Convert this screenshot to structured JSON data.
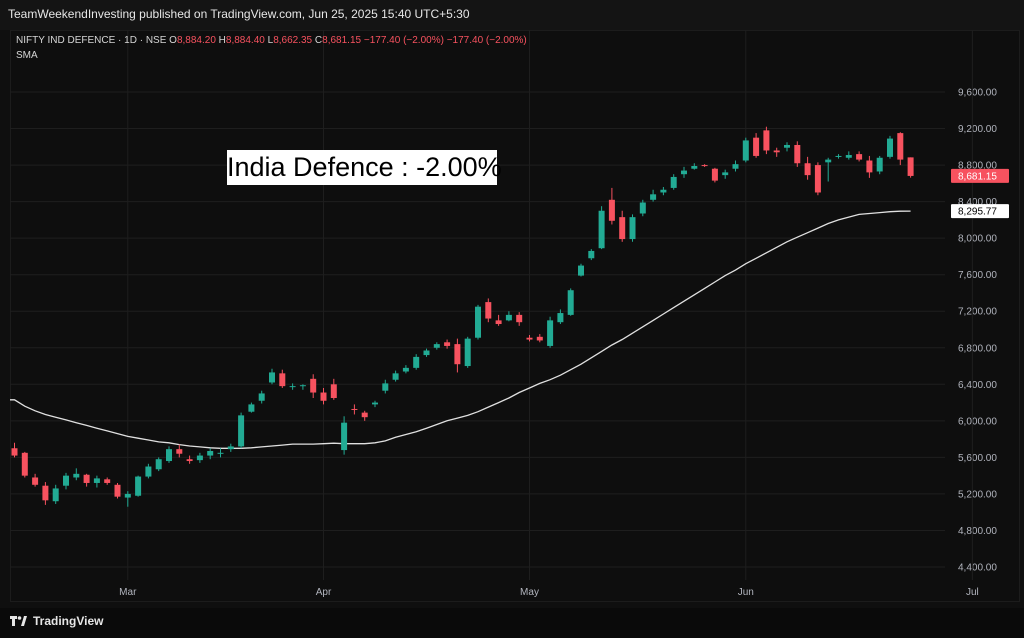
{
  "header": {
    "published_line": "TeamWeekendInvesting published on TradingView.com, Jun 25, 2025 15:40 UTC+5:30"
  },
  "legend": {
    "symbol": "NIFTY IND DEFENCE · 1D · NSE",
    "o_key": "O",
    "o_val": "8,884.20",
    "h_key": "H",
    "h_val": "8,884.40",
    "l_key": "L",
    "l_val": "8,662.35",
    "c_key": "C",
    "c_val": "8,681.15",
    "change": "−177.40 (−2.00%)",
    "change2": "−177.40 (−2.00%)",
    "indicator": "SMA"
  },
  "annotation": "India Defence : -2.00%",
  "footer": {
    "brand": "TradingView"
  },
  "colors": {
    "up": "#22ab94",
    "down": "#f7525f",
    "sma": "#e0e0e0",
    "grid": "#1e1e1e",
    "last_price_tag": "#f7525f",
    "sma_tag": "#ffffff"
  },
  "chart_data": {
    "type": "candlestick",
    "y_axis": {
      "ticks": [
        "9,600.00",
        "9,200.00",
        "8,800.00",
        "8,400.00",
        "8,000.00",
        "7,600.00",
        "7,200.00",
        "6,800.00",
        "6,400.00",
        "6,000.00",
        "5,600.00",
        "5,200.00",
        "4,800.00",
        "4,400.00"
      ],
      "range": [
        4300,
        9800
      ]
    },
    "x_axis": {
      "labels": [
        {
          "label": "Mar",
          "bar": 11
        },
        {
          "label": "Apr",
          "bar": 30
        },
        {
          "label": "May",
          "bar": 50
        },
        {
          "label": "Jun",
          "bar": 71
        },
        {
          "label": "Jul",
          "bar": 93
        }
      ]
    },
    "last_price_label": "8,681.15",
    "last_price": 8681.15,
    "sma_label": "8,295.77",
    "sma_last": 8295.77,
    "ohlc": [
      [
        5700,
        5760,
        5600,
        5620
      ],
      [
        5650,
        5660,
        5380,
        5400
      ],
      [
        5380,
        5420,
        5280,
        5300
      ],
      [
        5290,
        5330,
        5080,
        5130
      ],
      [
        5120,
        5300,
        5090,
        5260
      ],
      [
        5290,
        5430,
        5250,
        5400
      ],
      [
        5380,
        5480,
        5350,
        5420
      ],
      [
        5410,
        5420,
        5280,
        5320
      ],
      [
        5320,
        5400,
        5270,
        5370
      ],
      [
        5360,
        5380,
        5300,
        5320
      ],
      [
        5300,
        5320,
        5150,
        5170
      ],
      [
        5160,
        5230,
        5060,
        5200
      ],
      [
        5180,
        5400,
        5170,
        5390
      ],
      [
        5390,
        5530,
        5370,
        5500
      ],
      [
        5470,
        5600,
        5450,
        5580
      ],
      [
        5560,
        5720,
        5540,
        5690
      ],
      [
        5690,
        5740,
        5600,
        5640
      ],
      [
        5580,
        5620,
        5530,
        5560
      ],
      [
        5570,
        5650,
        5540,
        5620
      ],
      [
        5620,
        5700,
        5580,
        5670
      ],
      [
        5640,
        5700,
        5600,
        5650
      ],
      [
        5690,
        5750,
        5660,
        5720
      ],
      [
        5720,
        6090,
        5700,
        6060
      ],
      [
        6100,
        6200,
        6090,
        6180
      ],
      [
        6220,
        6330,
        6190,
        6300
      ],
      [
        6420,
        6570,
        6400,
        6530
      ],
      [
        6520,
        6560,
        6360,
        6380
      ],
      [
        6380,
        6410,
        6340,
        6380
      ],
      [
        6380,
        6400,
        6340,
        6390
      ],
      [
        6460,
        6510,
        6250,
        6310
      ],
      [
        6310,
        6360,
        6180,
        6220
      ],
      [
        6400,
        6460,
        6230,
        6250
      ],
      [
        5680,
        6050,
        5630,
        5980
      ],
      [
        6130,
        6180,
        6070,
        6120
      ],
      [
        6090,
        6110,
        6000,
        6040
      ],
      [
        6180,
        6220,
        6150,
        6200
      ],
      [
        6330,
        6450,
        6300,
        6410
      ],
      [
        6450,
        6550,
        6430,
        6520
      ],
      [
        6540,
        6610,
        6520,
        6580
      ],
      [
        6580,
        6730,
        6560,
        6700
      ],
      [
        6720,
        6790,
        6700,
        6770
      ],
      [
        6800,
        6860,
        6780,
        6840
      ],
      [
        6860,
        6890,
        6790,
        6820
      ],
      [
        6840,
        6900,
        6530,
        6620
      ],
      [
        6600,
        6920,
        6580,
        6900
      ],
      [
        6910,
        7270,
        6890,
        7250
      ],
      [
        7300,
        7340,
        7080,
        7120
      ],
      [
        7100,
        7160,
        7040,
        7060
      ],
      [
        7100,
        7200,
        7090,
        7160
      ],
      [
        7160,
        7190,
        7040,
        7080
      ],
      [
        6910,
        6940,
        6870,
        6890
      ],
      [
        6920,
        6950,
        6860,
        6880
      ],
      [
        6820,
        7140,
        6800,
        7100
      ],
      [
        7080,
        7220,
        7060,
        7180
      ],
      [
        7160,
        7450,
        7150,
        7430
      ],
      [
        7590,
        7720,
        7580,
        7700
      ],
      [
        7780,
        7880,
        7760,
        7860
      ],
      [
        7890,
        8350,
        7880,
        8300
      ],
      [
        8420,
        8550,
        8150,
        8190
      ],
      [
        8230,
        8300,
        7960,
        7990
      ],
      [
        7990,
        8260,
        7960,
        8230
      ],
      [
        8270,
        8420,
        8240,
        8390
      ],
      [
        8420,
        8530,
        8400,
        8480
      ],
      [
        8500,
        8560,
        8470,
        8530
      ],
      [
        8550,
        8700,
        8530,
        8670
      ],
      [
        8700,
        8780,
        8660,
        8740
      ],
      [
        8760,
        8820,
        8750,
        8790
      ],
      [
        8800,
        8810,
        8780,
        8790
      ],
      [
        8760,
        8770,
        8610,
        8630
      ],
      [
        8690,
        8750,
        8650,
        8720
      ],
      [
        8760,
        8850,
        8730,
        8810
      ],
      [
        8850,
        9100,
        8830,
        9070
      ],
      [
        9100,
        9150,
        8880,
        8900
      ],
      [
        9180,
        9220,
        8920,
        8960
      ],
      [
        8960,
        8990,
        8890,
        8940
      ],
      [
        8990,
        9050,
        8950,
        9020
      ],
      [
        9020,
        9060,
        8780,
        8820
      ],
      [
        8820,
        8890,
        8640,
        8690
      ],
      [
        8800,
        8830,
        8470,
        8500
      ],
      [
        8830,
        8880,
        8620,
        8860
      ],
      [
        8890,
        8920,
        8870,
        8900
      ],
      [
        8880,
        8950,
        8860,
        8910
      ],
      [
        8920,
        8950,
        8840,
        8860
      ],
      [
        8850,
        8900,
        8660,
        8720
      ],
      [
        8730,
        8900,
        8700,
        8880
      ],
      [
        8890,
        9120,
        8870,
        9090
      ],
      [
        9150,
        9160,
        8800,
        8860
      ],
      [
        8884.2,
        8884.4,
        8662.35,
        8681.15
      ]
    ],
    "sma": [
      6230,
      6160,
      6110,
      6070,
      6040,
      6010,
      5980,
      5950,
      5920,
      5890,
      5860,
      5830,
      5810,
      5790,
      5770,
      5760,
      5740,
      5725,
      5715,
      5705,
      5700,
      5700,
      5700,
      5705,
      5715,
      5725,
      5735,
      5745,
      5745,
      5745,
      5750,
      5755,
      5750,
      5750,
      5750,
      5760,
      5780,
      5820,
      5850,
      5880,
      5920,
      5960,
      6000,
      6030,
      6060,
      6100,
      6150,
      6200,
      6250,
      6310,
      6360,
      6410,
      6450,
      6500,
      6560,
      6620,
      6690,
      6760,
      6830,
      6890,
      6960,
      7030,
      7100,
      7170,
      7240,
      7310,
      7380,
      7450,
      7520,
      7590,
      7650,
      7720,
      7780,
      7840,
      7900,
      7960,
      8010,
      8060,
      8110,
      8160,
      8200,
      8230,
      8260,
      8270,
      8280,
      8290,
      8295,
      8295.77
    ]
  }
}
